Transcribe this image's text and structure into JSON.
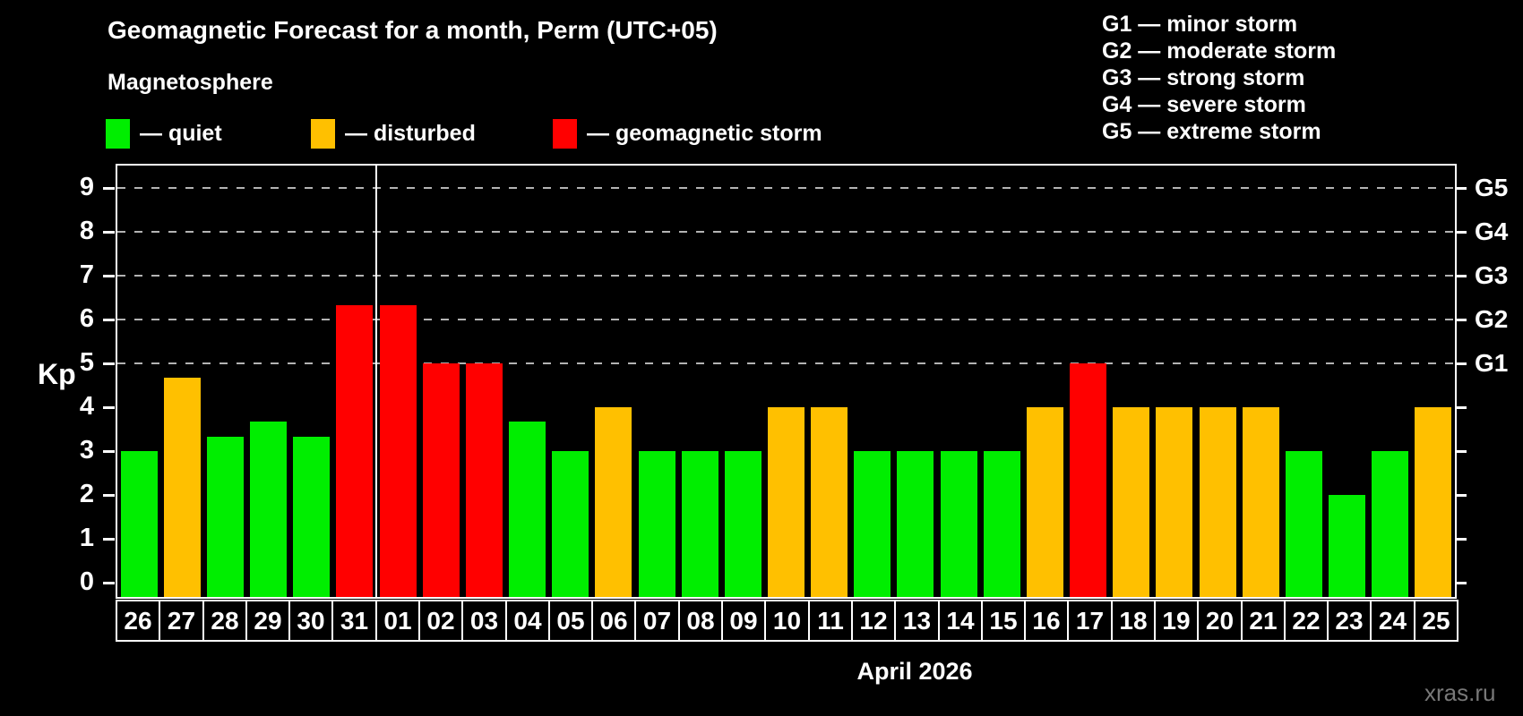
{
  "header": {
    "title": "Geomagnetic Forecast for a month, Perm (UTC+05)",
    "subtitle": "Magnetosphere"
  },
  "legend": {
    "items": [
      {
        "label": "— quiet",
        "status": "quiet",
        "color": "#00ee00"
      },
      {
        "label": "— disturbed",
        "status": "disturbed",
        "color": "#ffc000"
      },
      {
        "label": "— geomagnetic storm",
        "status": "storm",
        "color": "#ff0000"
      }
    ]
  },
  "g_legend": {
    "lines": [
      "G1 — minor storm",
      "G2 — moderate storm",
      "G3 — strong storm",
      "G4 — severe storm",
      "G5 — extreme storm"
    ]
  },
  "chart_data": {
    "type": "bar",
    "title": "Geomagnetic Forecast for a month, Perm (UTC+05)",
    "subtitle": "Magnetosphere",
    "ylabel": "Kp",
    "xlabel": "April 2026",
    "ylim": [
      0,
      9
    ],
    "yticks": [
      0,
      1,
      2,
      3,
      4,
      5,
      6,
      7,
      8,
      9
    ],
    "grid": "dashed horizontal lines at Kp 5-9 only",
    "gridlines_kp": [
      5,
      6,
      7,
      8,
      9
    ],
    "right_axis_labels": [
      {
        "label": "G1",
        "kp": 5
      },
      {
        "label": "G2",
        "kp": 6
      },
      {
        "label": "G3",
        "kp": 7
      },
      {
        "label": "G4",
        "kp": 8
      },
      {
        "label": "G5",
        "kp": 9
      }
    ],
    "month_separator_after_index": 5,
    "categories": [
      "26",
      "27",
      "28",
      "29",
      "30",
      "31",
      "01",
      "02",
      "03",
      "04",
      "05",
      "06",
      "07",
      "08",
      "09",
      "10",
      "11",
      "12",
      "13",
      "14",
      "15",
      "16",
      "17",
      "18",
      "19",
      "20",
      "21",
      "22",
      "23",
      "24",
      "25"
    ],
    "values": [
      3,
      4.67,
      3.33,
      3.67,
      3.33,
      6.33,
      6.33,
      5,
      5,
      3.67,
      3,
      4,
      3,
      3,
      3,
      4,
      4,
      3,
      3,
      3,
      3,
      4,
      5,
      4,
      4,
      4,
      4,
      3,
      2,
      3,
      4
    ],
    "statuses": [
      "quiet",
      "disturbed",
      "quiet",
      "quiet",
      "quiet",
      "storm",
      "storm",
      "storm",
      "storm",
      "quiet",
      "quiet",
      "disturbed",
      "quiet",
      "quiet",
      "quiet",
      "disturbed",
      "disturbed",
      "quiet",
      "quiet",
      "quiet",
      "quiet",
      "disturbed",
      "storm",
      "disturbed",
      "disturbed",
      "disturbed",
      "disturbed",
      "quiet",
      "quiet",
      "quiet",
      "disturbed"
    ],
    "colors": {
      "quiet": "#00ee00",
      "disturbed": "#ffc000",
      "storm": "#ff0000"
    }
  },
  "footer": {
    "xlabel": "April 2026",
    "watermark": "xras.ru"
  }
}
